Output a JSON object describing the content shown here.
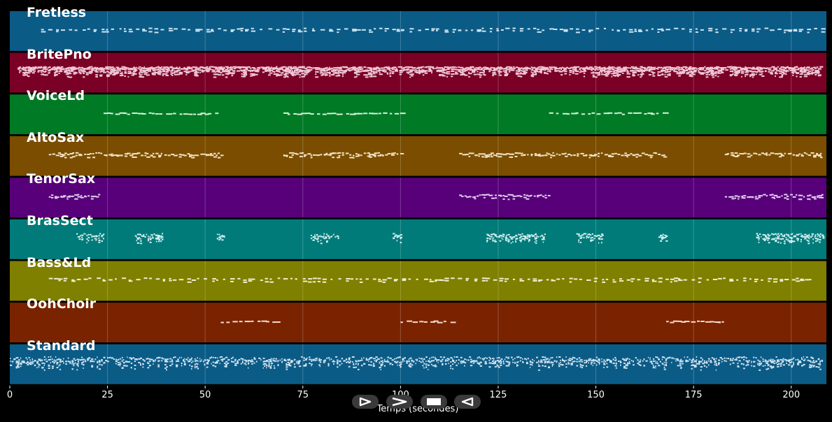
{
  "chart_data": {
    "type": "piano-roll",
    "xlabel": "Temps (secondes)",
    "xlim": [
      0,
      209
    ],
    "xticks": [
      0,
      25,
      50,
      75,
      100,
      125,
      150,
      175,
      200
    ],
    "tracks": [
      {
        "name": "Fretless",
        "color": "#0b5b87",
        "note": "#cfe3ef",
        "density": "dense-single",
        "segments": [
          [
            8,
            208
          ]
        ]
      },
      {
        "name": "BritePno",
        "color": "#7a0026",
        "note": "#f0c8d6",
        "density": "very-dense",
        "segments": [
          [
            2,
            208
          ]
        ]
      },
      {
        "name": "VoiceLd",
        "color": "#007a24",
        "note": "#d6f0dc",
        "density": "sparse",
        "segments": [
          [
            24,
            54
          ],
          [
            70,
            100
          ],
          [
            138,
            168
          ]
        ]
      },
      {
        "name": "AltoSax",
        "color": "#7a4d00",
        "note": "#f3e2c4",
        "density": "medium",
        "segments": [
          [
            10,
            54
          ],
          [
            70,
            100
          ],
          [
            115,
            168
          ],
          [
            183,
            208
          ]
        ]
      },
      {
        "name": "TenorSax",
        "color": "#57007a",
        "note": "#e3cff0",
        "density": "medium",
        "segments": [
          [
            10,
            23
          ],
          [
            115,
            138
          ],
          [
            183,
            208
          ]
        ]
      },
      {
        "name": "BrasSect",
        "color": "#007b7a",
        "note": "#d2f0ef",
        "density": "clusters",
        "segments": [
          [
            17,
            24
          ],
          [
            32,
            39
          ],
          [
            53,
            55
          ],
          [
            77,
            84
          ],
          [
            98,
            100
          ],
          [
            122,
            137
          ],
          [
            145,
            152
          ],
          [
            166,
            168
          ],
          [
            191,
            208
          ]
        ]
      },
      {
        "name": "Bass&Ld",
        "color": "#7f7f00",
        "note": "#efefcf",
        "density": "dense-single",
        "segments": [
          [
            10,
            206
          ]
        ]
      },
      {
        "name": "OohChoir",
        "color": "#7a2300",
        "note": "#f3dcd0",
        "density": "sparse",
        "segments": [
          [
            54,
            69
          ],
          [
            100,
            114
          ],
          [
            168,
            183
          ]
        ]
      },
      {
        "name": "Standard",
        "color": "#0b5b87",
        "note": "#cfe3ef",
        "density": "drums",
        "segments": [
          [
            0,
            208
          ]
        ]
      }
    ]
  },
  "controls": [
    {
      "name": "play-button",
      "icon": "play-outline-icon"
    },
    {
      "name": "forward-button",
      "icon": "forward-chevron-icon"
    },
    {
      "name": "stop-button",
      "icon": "stop-icon"
    },
    {
      "name": "rewind-button",
      "icon": "rewind-outline-icon"
    }
  ]
}
